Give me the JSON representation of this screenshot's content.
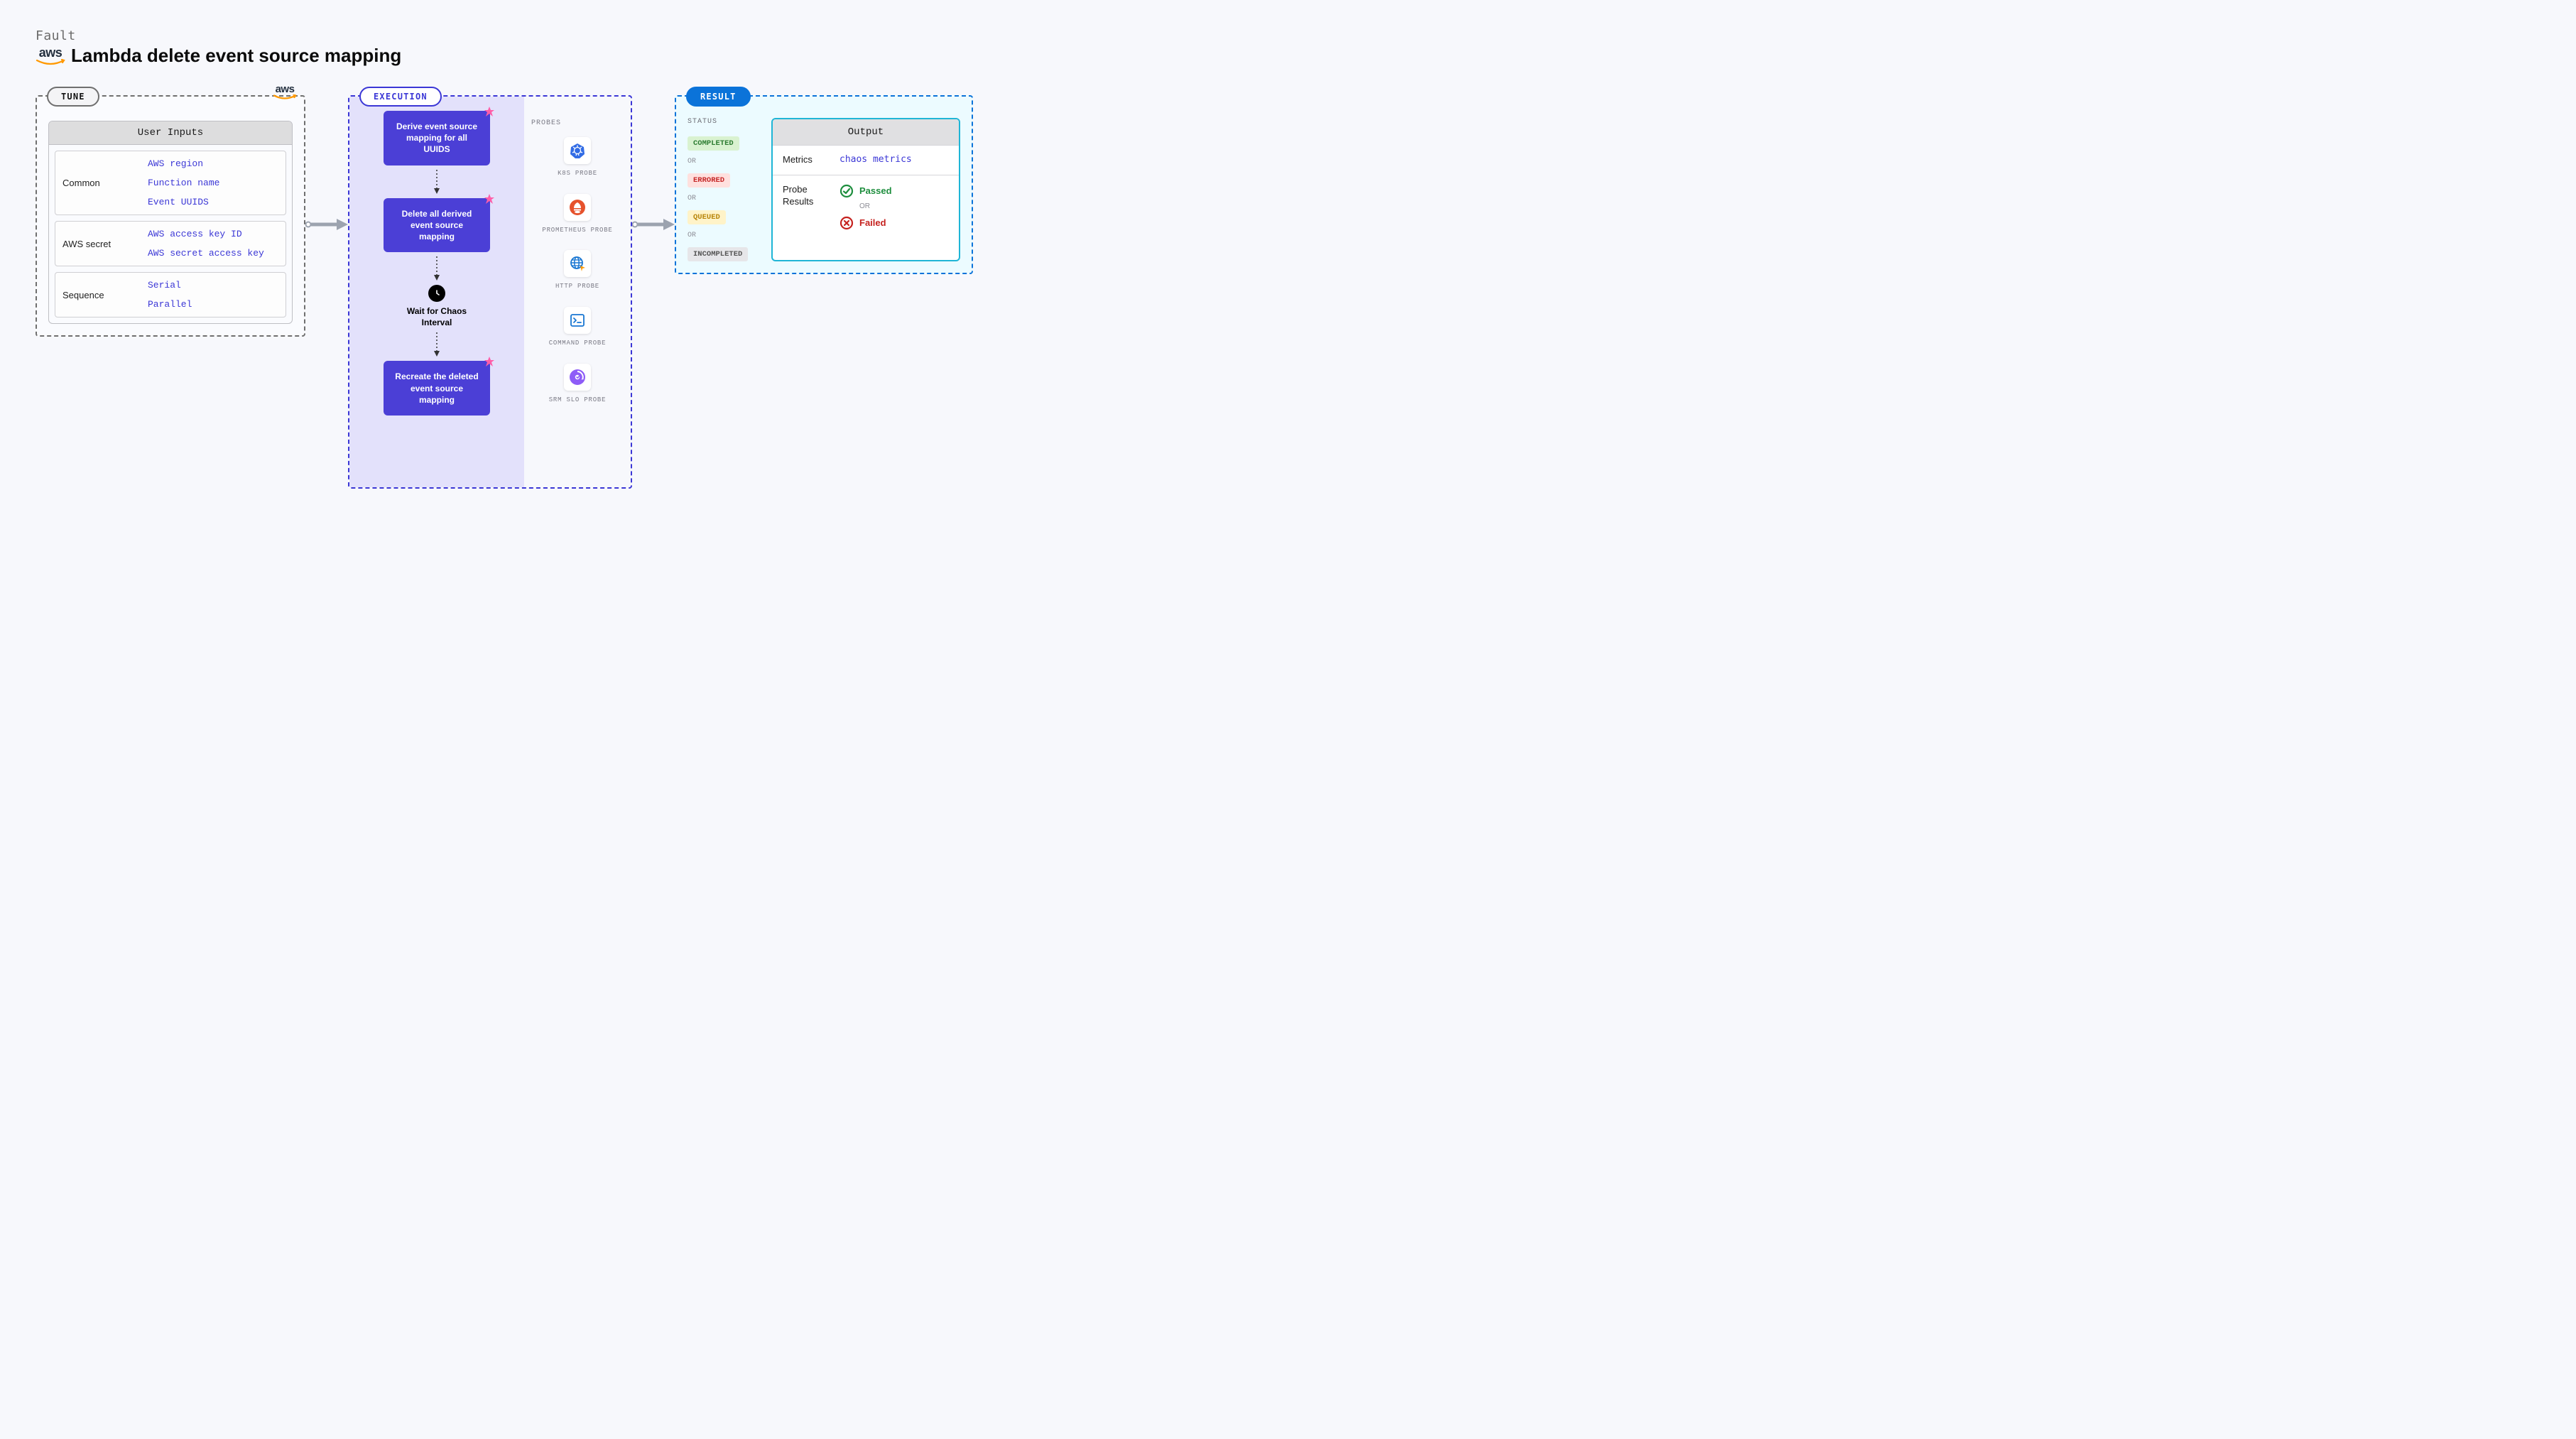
{
  "header": {
    "fault_label": "Fault",
    "title": "Lambda delete event source mapping",
    "provider": "aws"
  },
  "colors": {
    "background": "#f7f8fc",
    "tune_border": "#6f6f6f",
    "exec_border": "#3b37d6",
    "exec_fill": "#e3e1fb",
    "result_border": "#0b73d9",
    "result_fill": "#ecfbff",
    "flow_block": "#4b3fd6",
    "input_link": "#3b37d6",
    "aws_orange": "#ff9900",
    "aws_dark": "#232f3e"
  },
  "tune": {
    "badge": "TUNE",
    "card_title": "User Inputs",
    "groups": [
      {
        "label": "Common",
        "values": [
          "AWS region",
          "Function name",
          "Event UUIDS"
        ]
      },
      {
        "label": "AWS secret",
        "values": [
          "AWS access key ID",
          "AWS secret access key"
        ]
      },
      {
        "label": "Sequence",
        "values": [
          "Serial",
          "Parallel"
        ]
      }
    ]
  },
  "execution": {
    "badge": "EXECUTION",
    "steps": [
      {
        "type": "block",
        "text": "Derive event source mapping for all UUIDS"
      },
      {
        "type": "block",
        "text": "Delete all derived event source mapping"
      },
      {
        "type": "wait",
        "text": "Wait for Chaos Interval"
      },
      {
        "type": "block",
        "text": "Recreate the deleted event source mapping"
      }
    ],
    "probes_title": "PROBES",
    "probes": [
      {
        "id": "k8s",
        "label": "K8S PROBE"
      },
      {
        "id": "prom",
        "label": "PROMETHEUS PROBE"
      },
      {
        "id": "http",
        "label": "HTTP PROBE"
      },
      {
        "id": "cmd",
        "label": "COMMAND PROBE"
      },
      {
        "id": "srm",
        "label": "SRM SLO PROBE"
      }
    ]
  },
  "result": {
    "badge": "RESULT",
    "status_title": "STATUS",
    "or_label": "OR",
    "statuses": [
      {
        "text": "COMPLETED",
        "bg": "#d9f2d0",
        "fg": "#2e7d32"
      },
      {
        "text": "ERRORED",
        "bg": "#ffe0de",
        "fg": "#c62828"
      },
      {
        "text": "QUEUED",
        "bg": "#fff3c8",
        "fg": "#b8860b"
      },
      {
        "text": "INCOMPLETED",
        "bg": "#e6e6e9",
        "fg": "#555"
      }
    ],
    "output_title": "Output",
    "metrics_label": "Metrics",
    "metrics_value": "chaos metrics",
    "probe_results_label": "Probe Results",
    "passed_label": "Passed",
    "failed_label": "Failed",
    "passed_color": "#1e8e3e",
    "failed_color": "#c5221f"
  }
}
